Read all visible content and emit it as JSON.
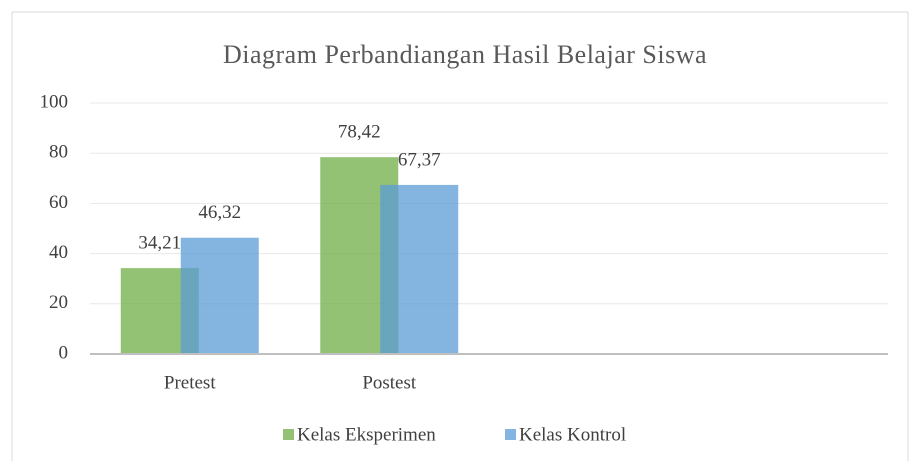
{
  "chart_data": {
    "type": "bar",
    "title": "Diagram Perbandiangan Hasil Belajar Siswa",
    "categories": [
      "Pretest",
      "Postest",
      null,
      null
    ],
    "series": [
      {
        "name": "Kelas Eksperimen",
        "color": "#70ad47",
        "values": [
          34.21,
          78.42,
          null,
          null
        ],
        "value_labels": [
          "34,21",
          "78,42",
          null,
          null
        ]
      },
      {
        "name": "Kelas Kontrol",
        "color": "#5b9bd5",
        "values": [
          46.32,
          67.37,
          null,
          null
        ],
        "value_labels": [
          "46,32",
          "67,37",
          null,
          null
        ]
      }
    ],
    "ylim": [
      0,
      100
    ],
    "yticks": [
      0,
      20,
      40,
      60,
      80,
      100
    ],
    "grid": true,
    "legend": "bottom"
  }
}
